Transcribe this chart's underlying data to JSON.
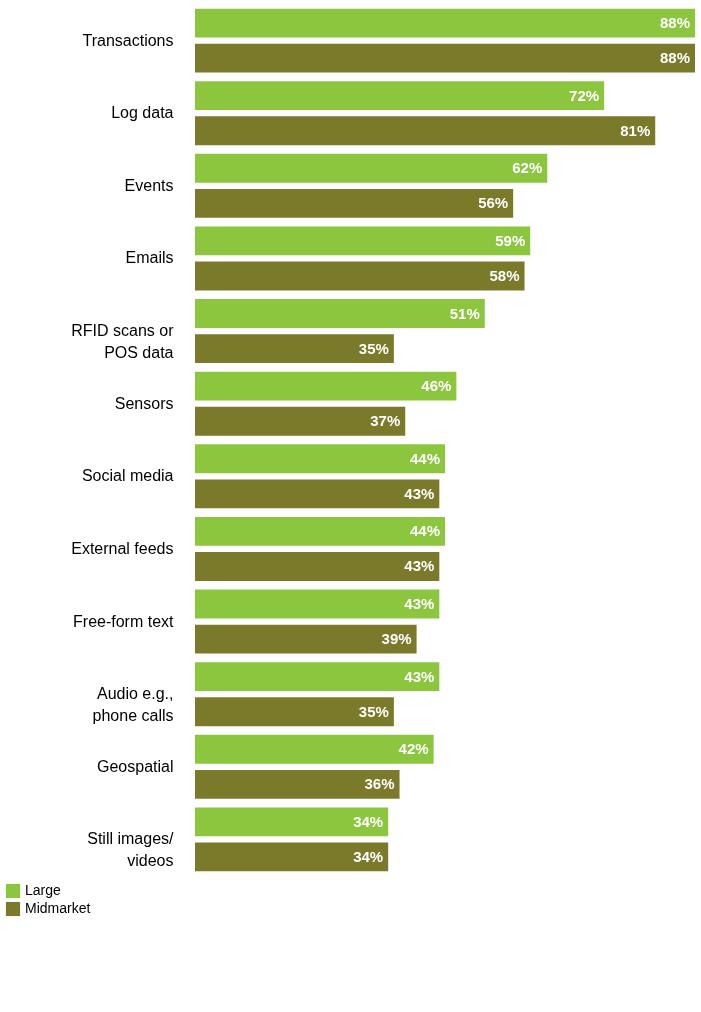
{
  "chart_data": {
    "type": "bar",
    "orientation": "horizontal",
    "categories": [
      "Transactions",
      "Log data",
      "Events",
      "Emails",
      "RFID scans or\nPOS data",
      "Sensors",
      "Social media",
      "External feeds",
      "Free-form text",
      "Audio e.g.,\nphone calls",
      "Geospatial",
      "Still images/\nvideos"
    ],
    "series": [
      {
        "name": "Large",
        "color": "#8cc63f",
        "values": [
          88,
          72,
          62,
          59,
          51,
          46,
          44,
          44,
          43,
          43,
          42,
          34
        ],
        "value_labels": [
          "88%",
          "72%",
          "62%",
          "59%",
          "51%",
          "46%",
          "44%",
          "44%",
          "43%",
          "43%",
          "42%",
          "34%"
        ]
      },
      {
        "name": "Midmarket",
        "color": "#7a7a2a",
        "values": [
          88,
          81,
          56,
          58,
          35,
          37,
          43,
          43,
          39,
          35,
          36,
          34
        ],
        "value_labels": [
          "88%",
          "81%",
          "56%",
          "58%",
          "35%",
          "37%",
          "43%",
          "43%",
          "39%",
          "35%",
          "36%",
          "34%"
        ]
      }
    ],
    "xlim": [
      0,
      88
    ],
    "tick_labels": "y",
    "grid": false,
    "legend": "bottom left"
  }
}
